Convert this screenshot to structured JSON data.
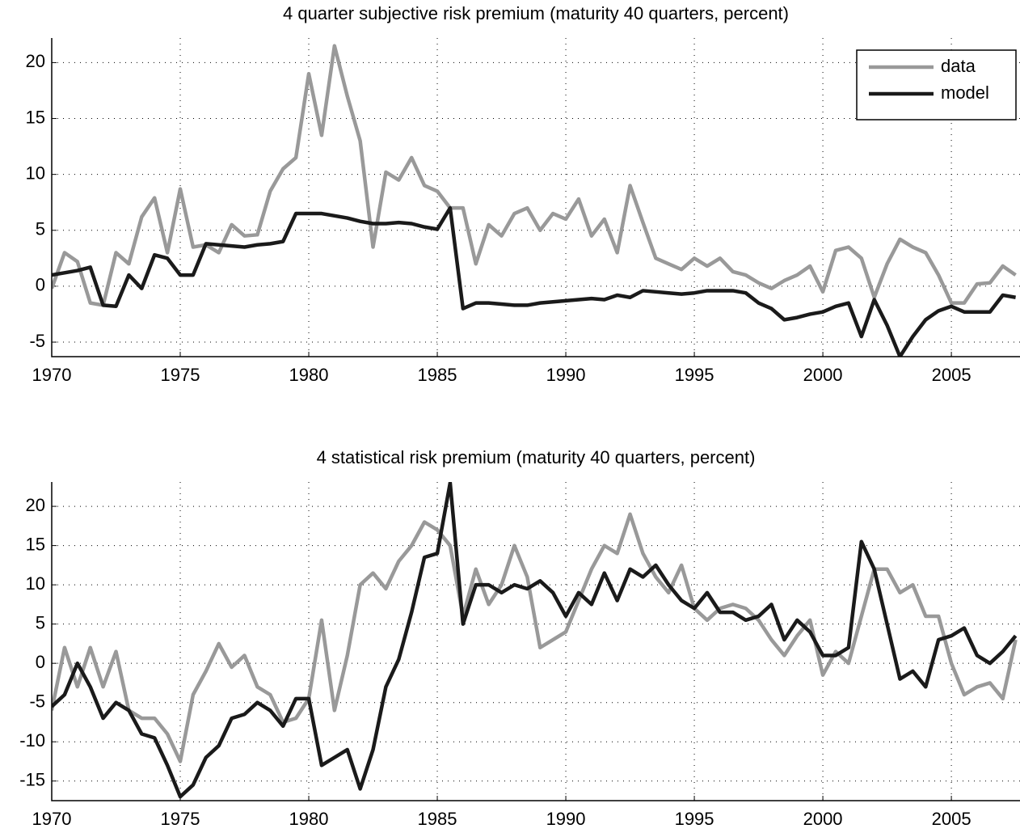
{
  "chart_data": [
    {
      "type": "line",
      "title": "4 quarter subjective risk premium (maturity 40 quarters, percent)",
      "x": [
        1970,
        1970.5,
        1971,
        1971.5,
        1972,
        1972.5,
        1973,
        1973.5,
        1974,
        1974.5,
        1975,
        1975.5,
        1976,
        1976.5,
        1977,
        1977.5,
        1978,
        1978.5,
        1979,
        1979.5,
        1980,
        1980.5,
        1981,
        1981.5,
        1982,
        1982.5,
        1983,
        1983.5,
        1984,
        1984.5,
        1985,
        1985.5,
        1986,
        1986.5,
        1987,
        1987.5,
        1988,
        1988.5,
        1989,
        1989.5,
        1990,
        1990.5,
        1991,
        1991.5,
        1992,
        1992.5,
        1993,
        1993.5,
        1994,
        1994.5,
        1995,
        1995.5,
        1996,
        1996.5,
        1997,
        1997.5,
        1998,
        1998.5,
        1999,
        1999.5,
        2000,
        2000.5,
        2001,
        2001.5,
        2002,
        2002.5,
        2003,
        2003.5,
        2004,
        2004.5,
        2005,
        2005.5,
        2006,
        2006.5,
        2007,
        2007.5
      ],
      "series": [
        {
          "name": "data",
          "color": "#999999",
          "values": [
            -0.2,
            3.0,
            2.2,
            -1.5,
            -1.7,
            3.0,
            2.0,
            6.2,
            7.9,
            3.0,
            8.7,
            3.5,
            3.7,
            3.0,
            5.5,
            4.5,
            4.6,
            8.5,
            10.5,
            11.5,
            19.0,
            13.5,
            21.5,
            17.0,
            13.0,
            3.5,
            10.2,
            9.5,
            11.5,
            9.0,
            8.5,
            7.0,
            7.0,
            2.0,
            5.5,
            4.5,
            6.5,
            7.0,
            5.0,
            6.5,
            6.0,
            7.8,
            4.5,
            6.0,
            3.0,
            9.0,
            5.7,
            2.5,
            2.0,
            1.5,
            2.5,
            1.8,
            2.5,
            1.3,
            1.0,
            0.3,
            -0.2,
            0.5,
            1.0,
            1.8,
            -0.5,
            3.2,
            3.5,
            2.5,
            -1.0,
            2.0,
            4.2,
            3.5,
            3.0,
            1.0,
            -1.5,
            -1.5,
            0.2,
            0.3,
            1.8,
            1.0
          ]
        },
        {
          "name": "model",
          "color": "#1a1a1a",
          "values": [
            1.0,
            1.2,
            1.4,
            1.7,
            -1.7,
            -1.8,
            1.0,
            -0.2,
            2.8,
            2.5,
            1.0,
            1.0,
            3.8,
            3.7,
            3.6,
            3.5,
            3.7,
            3.8,
            4.0,
            6.5,
            6.5,
            6.5,
            6.3,
            6.1,
            5.8,
            5.6,
            5.6,
            5.7,
            5.6,
            5.3,
            5.1,
            7.0,
            -2.0,
            -1.5,
            -1.5,
            -1.6,
            -1.7,
            -1.7,
            -1.5,
            -1.4,
            -1.3,
            -1.2,
            -1.1,
            -1.2,
            -0.8,
            -1.0,
            -0.4,
            -0.5,
            -0.6,
            -0.7,
            -0.6,
            -0.4,
            -0.4,
            -0.4,
            -0.6,
            -1.5,
            -2.0,
            -3.0,
            -2.8,
            -2.5,
            -2.3,
            -1.8,
            -1.5,
            -4.5,
            -1.2,
            -3.5,
            -6.3,
            -4.5,
            -3.0,
            -2.2,
            -1.8,
            -2.3,
            -2.3,
            -2.3,
            -0.8,
            -1.0
          ]
        }
      ],
      "xlim": [
        1970,
        2007.67
      ],
      "xticks": [
        1970,
        1975,
        1980,
        1985,
        1990,
        1995,
        2000,
        2005
      ],
      "ylim": [
        -6.3,
        22.2
      ],
      "yticks": [
        -5,
        0,
        5,
        10,
        15,
        20
      ],
      "grid": true,
      "legend": "upper right"
    },
    {
      "type": "line",
      "title": "4 statistical risk premium (maturity 40 quarters, percent)",
      "x": [
        1970,
        1970.5,
        1971,
        1971.5,
        1972,
        1972.5,
        1973,
        1973.5,
        1974,
        1974.5,
        1975,
        1975.5,
        1976,
        1976.5,
        1977,
        1977.5,
        1978,
        1978.5,
        1979,
        1979.5,
        1980,
        1980.5,
        1981,
        1981.5,
        1982,
        1982.5,
        1983,
        1983.5,
        1984,
        1984.5,
        1985,
        1985.5,
        1986,
        1986.5,
        1987,
        1987.5,
        1988,
        1988.5,
        1989,
        1989.5,
        1990,
        1990.5,
        1991,
        1991.5,
        1992,
        1992.5,
        1993,
        1993.5,
        1994,
        1994.5,
        1995,
        1995.5,
        1996,
        1996.5,
        1997,
        1997.5,
        1998,
        1998.5,
        1999,
        1999.5,
        2000,
        2000.5,
        2001,
        2001.5,
        2002,
        2002.5,
        2003,
        2003.5,
        2004,
        2004.5,
        2005,
        2005.5,
        2006,
        2006.5,
        2007,
        2007.5
      ],
      "series": [
        {
          "color": "#999999",
          "values": [
            -6,
            2,
            -3,
            2,
            -3,
            1.5,
            -6,
            -7,
            -7,
            -9,
            -12.5,
            -4,
            -1,
            2.5,
            -0.5,
            1,
            -3,
            -4,
            -7.5,
            -7,
            -4.5,
            5.5,
            -6,
            1,
            10,
            11.5,
            9.5,
            13,
            15,
            18,
            17,
            15,
            6,
            12,
            7.5,
            10,
            15,
            11,
            2,
            3,
            4,
            8,
            12,
            15,
            14,
            19,
            14,
            11,
            9,
            12.5,
            7,
            5.5,
            7,
            7.5,
            7,
            5.5,
            3,
            1,
            3.5,
            5.5,
            -1.5,
            1.5,
            0,
            6,
            12,
            12,
            9,
            10,
            6,
            6,
            0,
            -4,
            -3,
            -2.5,
            -4.5,
            3
          ]
        },
        {
          "color": "#1a1a1a",
          "values": [
            -5.5,
            -4,
            0,
            -3,
            -7,
            -5,
            -6,
            -9,
            -9.5,
            -13,
            -17,
            -15.5,
            -12,
            -10.5,
            -7,
            -6.5,
            -5,
            -6,
            -8,
            -4.5,
            -4.5,
            -13,
            -12,
            -11,
            -16,
            -11,
            -3,
            0.5,
            6.5,
            13.5,
            14,
            23,
            5,
            10,
            10,
            9,
            10,
            9.5,
            10.5,
            9,
            6,
            9,
            7.5,
            11.5,
            8,
            12,
            11,
            12.5,
            10,
            8,
            7,
            9,
            6.5,
            6.5,
            5.5,
            6,
            7.5,
            3,
            5.5,
            4,
            1,
            1,
            2,
            15.5,
            12,
            5,
            -2,
            -1,
            -3,
            3,
            3.5,
            4.5,
            1,
            0,
            1.5,
            3.5
          ]
        }
      ],
      "xlim": [
        1970,
        2007.67
      ],
      "xticks": [
        1970,
        1975,
        1980,
        1985,
        1990,
        1995,
        2000,
        2005
      ],
      "ylim": [
        -17.5,
        23.1
      ],
      "yticks": [
        -15,
        -10,
        -5,
        0,
        5,
        10,
        15,
        20
      ],
      "grid": true
    }
  ]
}
